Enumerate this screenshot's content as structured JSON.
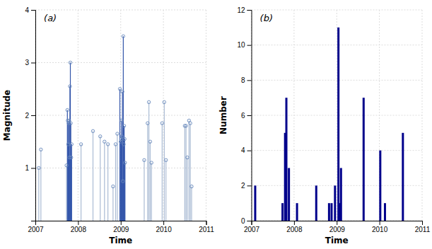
{
  "chart_data": [
    {
      "type": "stem",
      "xlabel": "Time",
      "ylabel": "Magnitude",
      "annotation": "(a)",
      "x": [
        2007.08,
        2007.13,
        2007.73,
        2007.75,
        2007.76,
        2007.77,
        2007.78,
        2007.79,
        2007.8,
        2007.81,
        2007.82,
        2007.83,
        2007.84,
        2007.85,
        2008.07,
        2008.35,
        2008.52,
        2008.62,
        2008.7,
        2008.82,
        2008.88,
        2008.92,
        2008.98,
        2009.0,
        2009.01,
        2009.02,
        2009.03,
        2009.04,
        2009.05,
        2009.06,
        2009.07,
        2009.08,
        2009.09,
        2009.1,
        2009.55,
        2009.63,
        2009.66,
        2009.69,
        2009.72,
        2009.97,
        2010.02,
        2010.06,
        2010.5,
        2010.53,
        2010.56,
        2010.6,
        2010.63,
        2010.66
      ],
      "values": [
        1.0,
        1.35,
        1.05,
        2.1,
        1.9,
        1.45,
        1.85,
        1.9,
        1.2,
        2.55,
        3.0,
        1.85,
        1.2,
        1.45,
        1.45,
        1.7,
        1.6,
        1.5,
        1.45,
        0.65,
        1.45,
        1.65,
        2.5,
        1.5,
        1.55,
        1.9,
        1.6,
        2.45,
        0.75,
        3.5,
        1.45,
        1.8,
        1.55,
        1.1,
        1.15,
        1.85,
        2.25,
        1.5,
        1.1,
        1.85,
        2.25,
        1.15,
        1.8,
        1.8,
        1.2,
        1.9,
        1.85,
        0.65
      ],
      "colors": [
        "#AABBD4",
        "#AABBD4",
        "#AABBD4",
        "#3355AA",
        "#3355AA",
        "#3355AA",
        "#3355AA",
        "#3355AA",
        "#3355AA",
        "#3355AA",
        "#3355AA",
        "#3355AA",
        "#3355AA",
        "#3355AA",
        "#AABBD4",
        "#AABBD4",
        "#AABBD4",
        "#AABBD4",
        "#AABBD4",
        "#AABBD4",
        "#AABBD4",
        "#AABBD4",
        "#3355AA",
        "#3355AA",
        "#3355AA",
        "#3355AA",
        "#3355AA",
        "#3355AA",
        "#3355AA",
        "#3355AA",
        "#3355AA",
        "#3355AA",
        "#3355AA",
        "#3355AA",
        "#AABBD4",
        "#AABBD4",
        "#AABBD4",
        "#AABBD4",
        "#AABBD4",
        "#AABBD4",
        "#AABBD4",
        "#AABBD4",
        "#AABBD4",
        "#AABBD4",
        "#AABBD4",
        "#AABBD4",
        "#AABBD4",
        "#AABBD4"
      ],
      "color": "#6688BB",
      "marker": "circle",
      "xlim": [
        2007,
        2011
      ],
      "xticks": [
        2007,
        2008,
        2009,
        2010,
        2011
      ],
      "ylim": [
        0,
        4
      ],
      "yticks": [
        1,
        2,
        3,
        4
      ],
      "grid": true
    },
    {
      "type": "bar",
      "xlabel": "Time",
      "ylabel": "Number",
      "annotation": "(b)",
      "x": [
        2007.09,
        2007.73,
        2007.79,
        2007.82,
        2007.88,
        2008.07,
        2008.52,
        2008.82,
        2008.88,
        2008.96,
        2009.04,
        2009.08,
        2009.1,
        2009.63,
        2010.02,
        2010.13,
        2010.55
      ],
      "values": [
        2,
        1,
        5,
        7,
        3,
        1,
        2,
        1,
        1,
        2,
        11,
        1,
        3,
        7,
        4,
        1,
        5
      ],
      "color": "#00008B",
      "xlim": [
        2007,
        2011
      ],
      "xticks": [
        2007,
        2008,
        2009,
        2010,
        2011
      ],
      "ylim": [
        0,
        12
      ],
      "yticks": [
        0,
        2,
        4,
        6,
        8,
        10,
        12
      ],
      "grid": true
    }
  ]
}
